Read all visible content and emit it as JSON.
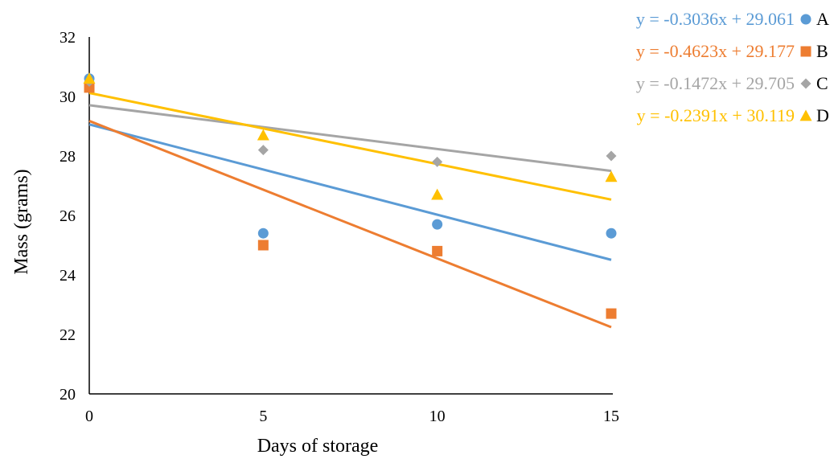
{
  "chart_data": {
    "type": "scatter",
    "title": "",
    "xlabel": "Days of storage",
    "ylabel": "Mass (grams)",
    "xlim": [
      0,
      15
    ],
    "ylim": [
      20,
      32
    ],
    "x_ticks": [
      0,
      5,
      10,
      15
    ],
    "y_ticks": [
      20,
      22,
      24,
      26,
      28,
      30,
      32
    ],
    "grid": false,
    "legend_position": "top-right",
    "series": [
      {
        "name": "A",
        "marker": "circle",
        "color": "#5b9bd5",
        "x": [
          0,
          5,
          10,
          15
        ],
        "y": [
          30.6,
          25.4,
          25.7,
          25.4
        ],
        "trendline": {
          "slope": -0.3036,
          "intercept": 29.061,
          "equation": "y = -0.3036x + 29.061"
        }
      },
      {
        "name": "B",
        "marker": "square",
        "color": "#ed7d31",
        "x": [
          0,
          5,
          10,
          15
        ],
        "y": [
          30.3,
          25.0,
          24.8,
          22.7
        ],
        "trendline": {
          "slope": -0.4623,
          "intercept": 29.177,
          "equation": "y = -0.4623x + 29.177"
        }
      },
      {
        "name": "C",
        "marker": "diamond",
        "color": "#a5a5a5",
        "x": [
          0,
          5,
          10,
          15
        ],
        "y": [
          30.5,
          28.2,
          27.8,
          28.0
        ],
        "trendline": {
          "slope": -0.1472,
          "intercept": 29.705,
          "equation": "y = -0.1472x + 29.705"
        }
      },
      {
        "name": "D",
        "marker": "triangle",
        "color": "#ffc000",
        "x": [
          0,
          5,
          10,
          15
        ],
        "y": [
          30.6,
          28.7,
          26.7,
          27.3
        ],
        "trendline": {
          "slope": -0.2391,
          "intercept": 30.119,
          "equation": "y = -0.2391x + 30.119"
        }
      }
    ]
  }
}
